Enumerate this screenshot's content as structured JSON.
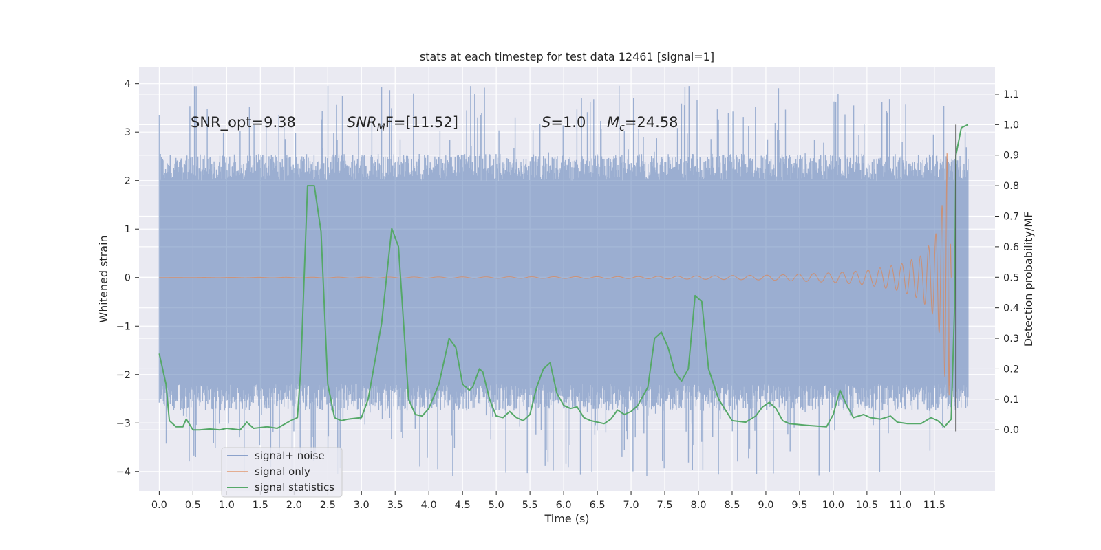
{
  "chart_data": {
    "type": "line",
    "title": "stats at each timestep for test data 12461 [signal=1]",
    "xlabel": "Time (s)",
    "ylabel": "Whitened strain",
    "y2label": "Detection probability/MF",
    "xlim": [
      -0.3,
      12.4
    ],
    "ylim": [
      -4.4,
      4.35
    ],
    "y2lim": [
      -0.2,
      1.19
    ],
    "x_ticks": [
      0.0,
      0.5,
      1.0,
      1.5,
      2.0,
      2.5,
      3.0,
      3.5,
      4.0,
      4.5,
      5.0,
      5.5,
      6.0,
      6.5,
      7.0,
      7.5,
      8.0,
      8.5,
      9.0,
      9.5,
      10.0,
      10.5,
      11.0,
      11.5
    ],
    "x_tick_labels": [
      "0.0",
      "0.5",
      "1.0",
      "1.5",
      "2.0",
      "2.5",
      "3.0",
      "3.5",
      "4.0",
      "4.5",
      "5.0",
      "5.5",
      "6.0",
      "6.5",
      "7.0",
      "7.5",
      "8.0",
      "8.5",
      "9.0",
      "9.5",
      "10.0",
      "10.5",
      "11.0",
      "11.5"
    ],
    "y_ticks": [
      4,
      3,
      2,
      1,
      0,
      -1,
      -2,
      -3,
      -4
    ],
    "y_tick_labels": [
      "4",
      "3",
      "2",
      "1",
      "0",
      "−1",
      "−2",
      "−3",
      "−4"
    ],
    "y2_ticks": [
      1.1,
      1.0,
      0.9,
      0.8,
      0.7,
      0.6,
      0.5,
      0.4,
      0.3,
      0.2,
      0.1,
      0.0
    ],
    "y2_tick_labels": [
      "1.1",
      "1.0",
      "0.9",
      "0.8",
      "0.7",
      "0.6",
      "0.5",
      "0.4",
      "0.3",
      "0.2",
      "0.1",
      "0.0"
    ],
    "grid": true,
    "legend_position": "lower-left",
    "annotations": [
      {
        "id": "snr-opt",
        "parts": [
          {
            "t": "SNR_opt=9.38",
            "style": "normal"
          }
        ]
      },
      {
        "id": "snr-mf",
        "parts": [
          {
            "t": "SNR",
            "style": "italic"
          },
          {
            "t": "M",
            "style": "italic-sub"
          },
          {
            "t": "F=[11.52]",
            "style": "normal"
          }
        ]
      },
      {
        "id": "s-value",
        "parts": [
          {
            "t": "S",
            "style": "italic"
          },
          {
            "t": "=1.0",
            "style": "normal"
          }
        ]
      },
      {
        "id": "mc-value",
        "parts": [
          {
            "t": "M",
            "style": "italic"
          },
          {
            "t": "c",
            "style": "italic-sub"
          },
          {
            "t": "=24.58",
            "style": "normal"
          }
        ]
      }
    ],
    "detection_marker": {
      "x": 11.82,
      "y2_top": 1.0
    },
    "series": [
      {
        "name": "signal+ noise",
        "color": "#4c72b0",
        "kind": "noise",
        "x_range": [
          0.0,
          12.0
        ],
        "envelope_low": -2.2,
        "envelope_high": 2.0,
        "spike_max": 3.97,
        "spike_min": -4.1
      },
      {
        "name": "signal only",
        "color": "#dd8452",
        "kind": "chirp",
        "x_range": [
          0.0,
          11.75
        ],
        "envelope": [
          [
            0.0,
            0.0
          ],
          [
            7.0,
            0.02
          ],
          [
            9.0,
            0.05
          ],
          [
            10.0,
            0.1
          ],
          [
            10.5,
            0.15
          ],
          [
            11.0,
            0.28
          ],
          [
            11.3,
            0.45
          ],
          [
            11.5,
            0.8
          ],
          [
            11.6,
            1.3
          ],
          [
            11.65,
            2.0
          ],
          [
            11.7,
            2.8
          ],
          [
            11.72,
            2.4
          ],
          [
            11.75,
            0.0
          ]
        ]
      },
      {
        "name": "signal statistics",
        "color": "#55a868",
        "kind": "line",
        "axis": "y2",
        "x": [
          0.0,
          0.1,
          0.15,
          0.25,
          0.35,
          0.4,
          0.5,
          0.6,
          0.75,
          0.9,
          1.0,
          1.2,
          1.3,
          1.4,
          1.6,
          1.75,
          1.95,
          2.05,
          2.1,
          2.2,
          2.3,
          2.4,
          2.5,
          2.6,
          2.7,
          2.8,
          3.0,
          3.1,
          3.3,
          3.45,
          3.55,
          3.7,
          3.8,
          3.9,
          4.0,
          4.15,
          4.3,
          4.4,
          4.5,
          4.6,
          4.65,
          4.75,
          4.8,
          4.9,
          5.0,
          5.1,
          5.2,
          5.3,
          5.4,
          5.5,
          5.6,
          5.7,
          5.8,
          5.9,
          6.0,
          6.1,
          6.2,
          6.3,
          6.4,
          6.6,
          6.7,
          6.8,
          6.9,
          7.0,
          7.1,
          7.25,
          7.35,
          7.45,
          7.55,
          7.65,
          7.75,
          7.85,
          7.95,
          8.05,
          8.15,
          8.3,
          8.5,
          8.7,
          8.85,
          8.95,
          9.05,
          9.15,
          9.25,
          9.35,
          9.6,
          9.9,
          10.0,
          10.1,
          10.2,
          10.3,
          10.45,
          10.55,
          10.7,
          10.85,
          10.95,
          11.1,
          11.3,
          11.45,
          11.55,
          11.65,
          11.75,
          11.8,
          11.82,
          11.9,
          12.0
        ],
        "values": [
          0.25,
          0.15,
          0.03,
          0.01,
          0.01,
          0.035,
          0.0,
          0.0,
          0.003,
          0.0,
          0.005,
          0.0,
          0.025,
          0.005,
          0.01,
          0.005,
          0.03,
          0.04,
          0.2,
          0.8,
          0.8,
          0.65,
          0.15,
          0.04,
          0.03,
          0.035,
          0.04,
          0.1,
          0.35,
          0.66,
          0.6,
          0.1,
          0.05,
          0.045,
          0.07,
          0.15,
          0.3,
          0.27,
          0.15,
          0.13,
          0.14,
          0.2,
          0.19,
          0.1,
          0.045,
          0.04,
          0.06,
          0.04,
          0.03,
          0.05,
          0.14,
          0.2,
          0.22,
          0.12,
          0.08,
          0.07,
          0.075,
          0.04,
          0.03,
          0.02,
          0.035,
          0.065,
          0.05,
          0.06,
          0.08,
          0.14,
          0.3,
          0.32,
          0.27,
          0.19,
          0.16,
          0.2,
          0.44,
          0.42,
          0.2,
          0.1,
          0.03,
          0.025,
          0.045,
          0.075,
          0.09,
          0.07,
          0.03,
          0.02,
          0.015,
          0.01,
          0.05,
          0.13,
          0.08,
          0.04,
          0.05,
          0.04,
          0.035,
          0.045,
          0.025,
          0.02,
          0.02,
          0.04,
          0.03,
          0.01,
          0.035,
          0.4,
          0.9,
          0.99,
          1.0
        ]
      }
    ]
  },
  "colors": {
    "plot_background": "#eaeaf2",
    "grid": "#ffffff",
    "text": "#262626",
    "detection_marker": "#555555"
  }
}
